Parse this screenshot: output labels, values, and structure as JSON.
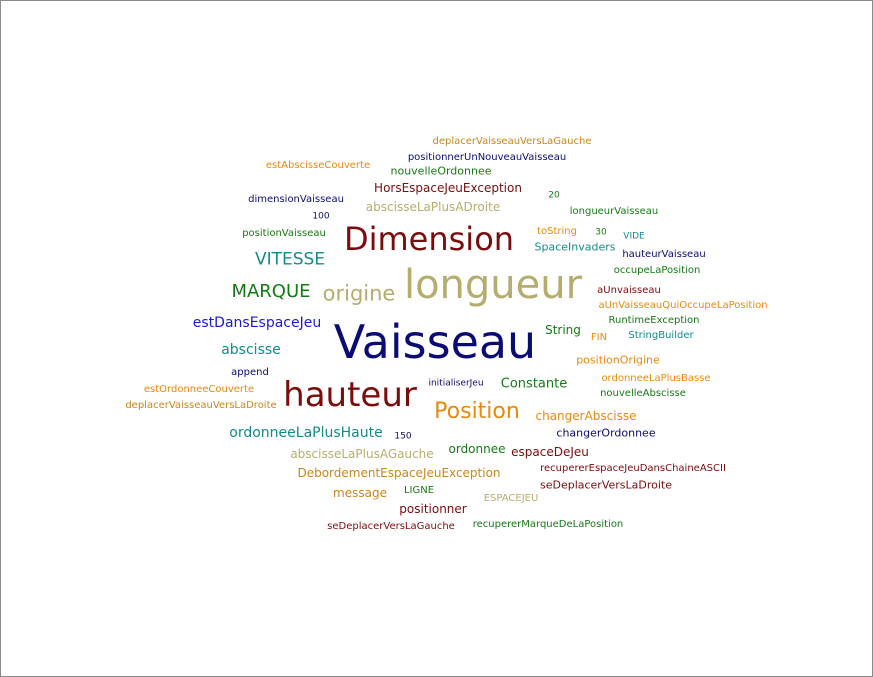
{
  "palette": {
    "navy": "#0b0b75",
    "maroon": "#7a0c0c",
    "khaki": "#b5ad6e",
    "orange": "#e8890c",
    "green": "#147a14",
    "teal": "#148a8a",
    "blue": "#1a1ad0",
    "darkorange": "#c8861a"
  },
  "words": [
    {
      "text": "Vaisseau",
      "color": "navy"
    },
    {
      "text": "longueur",
      "color": "khaki"
    },
    {
      "text": "hauteur",
      "color": "maroon"
    },
    {
      "text": "Dimension",
      "color": "maroon"
    },
    {
      "text": "Position",
      "color": "orange"
    },
    {
      "text": "origine",
      "color": "khaki"
    },
    {
      "text": "MARQUE",
      "color": "green"
    },
    {
      "text": "VITESSE",
      "color": "teal"
    },
    {
      "text": "estDansEspaceJeu",
      "color": "blue"
    },
    {
      "text": "abscisse",
      "color": "teal"
    },
    {
      "text": "ordonneeLaPlusHaute",
      "color": "teal"
    },
    {
      "text": "Constante",
      "color": "green"
    },
    {
      "text": "deplacerVaisseauVersLaGauche",
      "color": "darkorange"
    },
    {
      "text": "positionnerUnNouveauVaisseau",
      "color": "navy"
    },
    {
      "text": "estAbscisseCouverte",
      "color": "orange"
    },
    {
      "text": "nouvelleOrdonnee",
      "color": "green"
    },
    {
      "text": "HorsEspaceJeuException",
      "color": "maroon"
    },
    {
      "text": "dimensionVaisseau",
      "color": "navy"
    },
    {
      "text": "abscisseLaPlusADroite",
      "color": "khaki"
    },
    {
      "text": "20",
      "color": "green"
    },
    {
      "text": "longueurVaisseau",
      "color": "green"
    },
    {
      "text": "100",
      "color": "navy"
    },
    {
      "text": "positionVaisseau",
      "color": "green"
    },
    {
      "text": "toString",
      "color": "orange"
    },
    {
      "text": "30",
      "color": "green"
    },
    {
      "text": "VIDE",
      "color": "teal"
    },
    {
      "text": "SpaceInvaders",
      "color": "teal"
    },
    {
      "text": "hauteurVaisseau",
      "color": "navy"
    },
    {
      "text": "occupeLaPosition",
      "color": "green"
    },
    {
      "text": "aUnvaisseau",
      "color": "maroon"
    },
    {
      "text": "aUnVaisseauQuiOccupeLaPosition",
      "color": "orange"
    },
    {
      "text": "RuntimeException",
      "color": "green"
    },
    {
      "text": "String",
      "color": "green"
    },
    {
      "text": "FIN",
      "color": "orange"
    },
    {
      "text": "StringBuilder",
      "color": "teal"
    },
    {
      "text": "positionOrigine",
      "color": "orange"
    },
    {
      "text": "append",
      "color": "navy"
    },
    {
      "text": "ordonneeLaPlusBasse",
      "color": "orange"
    },
    {
      "text": "estOrdonneeCouverte",
      "color": "orange"
    },
    {
      "text": "initialiserJeu",
      "color": "navy"
    },
    {
      "text": "nouvelleAbscisse",
      "color": "green"
    },
    {
      "text": "deplacerVaisseauVersLaDroite",
      "color": "darkorange"
    },
    {
      "text": "changerAbscisse",
      "color": "orange"
    },
    {
      "text": "150",
      "color": "navy"
    },
    {
      "text": "changerOrdonnee",
      "color": "navy"
    },
    {
      "text": "abscisseLaPlusAGauche",
      "color": "khaki"
    },
    {
      "text": "ordonnee",
      "color": "green"
    },
    {
      "text": "espaceDeJeu",
      "color": "maroon"
    },
    {
      "text": "DebordementEspaceJeuException",
      "color": "darkorange"
    },
    {
      "text": "recupererEspaceJeuDansChaineASCII",
      "color": "maroon"
    },
    {
      "text": "message",
      "color": "darkorange"
    },
    {
      "text": "LIGNE",
      "color": "green"
    },
    {
      "text": "ESPACEJEU",
      "color": "khaki"
    },
    {
      "text": "seDeplacerVersLaDroite",
      "color": "maroon"
    },
    {
      "text": "positionner",
      "color": "maroon"
    },
    {
      "text": "seDeplacerVersLaGauche",
      "color": "maroon"
    },
    {
      "text": "recupererMarqueDeLaPosition",
      "color": "green"
    }
  ]
}
